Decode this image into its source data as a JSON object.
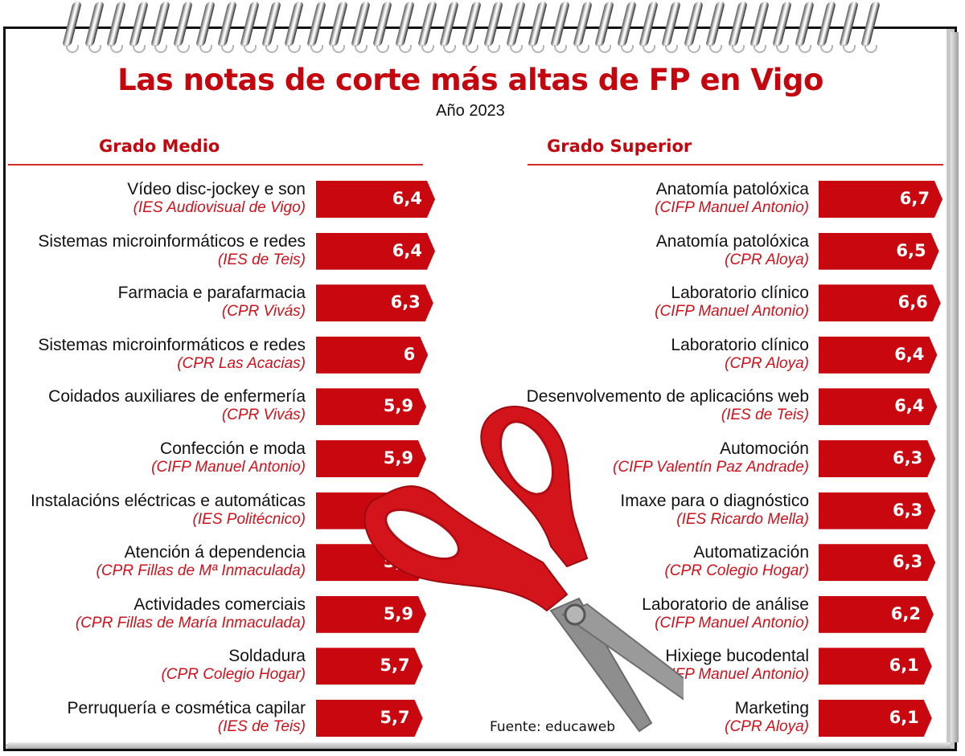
{
  "header": {
    "title": "Las notas de corte más altas de FP en Vigo",
    "subtitle": "Año 2023"
  },
  "sections": {
    "medio": {
      "title": "Grado Medio"
    },
    "superior": {
      "title": "Grado Superior"
    }
  },
  "colors": {
    "accent": "#c8070f",
    "school_text": "#d0111b",
    "label_text": "#111111"
  },
  "footer": {
    "source": "Fuente: educaweb"
  },
  "chart_data": [
    {
      "type": "bar",
      "orientation": "horizontal",
      "title": "Grado Medio",
      "categories": [
        "Vídeo disc-jockey e son (IES Audiovisual de Vigo)",
        "Sistemas microinformáticos e redes (IES de Teis)",
        "Farmacia e parafarmacia (CPR Vivás)",
        "Sistemas microinformáticos e redes (CPR Las Acacias)",
        "Coidados auxiliares de enfermería (CPR Vivás)",
        "Confección e moda (CIFP Manuel Antonio)",
        "Instalacións eléctricas e automáticas (IES Politécnico)",
        "Atención á dependencia (CPR Fillas de Mª Inmaculada)",
        "Actividades comerciais (CPR Fillas de María Inmaculada)",
        "Soldadura (CPR Colegio Hogar)",
        "Perruquería e cosmética capilar (IES de Teis)"
      ],
      "values": [
        6.4,
        6.4,
        6.3,
        6.0,
        5.9,
        5.9,
        5.8,
        5.9,
        5.9,
        5.7,
        5.7
      ],
      "labels": [
        "6,4",
        "6,4",
        "6,3",
        "6",
        "5,9",
        "5,9",
        "5,8",
        "5,9",
        "5,9",
        "5,7",
        "5,7"
      ]
    },
    {
      "type": "bar",
      "orientation": "horizontal",
      "title": "Grado Superior",
      "categories": [
        "Anatomía patolóxica (CIFP Manuel Antonio)",
        "Anatomía patolóxica (CPR Aloya)",
        "Laboratorio clínico (CIFP Manuel Antonio)",
        "Laboratorio clínico (CPR Aloya)",
        "Desenvolvemento de aplicacións web (IES de Teis)",
        "Automoción (CIFP Valentín Paz Andrade)",
        "Imaxe para o diagnóstico (IES Ricardo Mella)",
        "Automatización (CPR Colegio Hogar)",
        "Laboratorio de análise (CIFP Manuel Antonio)",
        "Hixiege bucodental (CIFP Manuel Antonio)",
        "Marketing (CPR Aloya)"
      ],
      "values": [
        6.7,
        6.5,
        6.6,
        6.4,
        6.4,
        6.3,
        6.3,
        6.3,
        6.2,
        6.1,
        6.1
      ],
      "labels": [
        "6,7",
        "6,5",
        "6,6",
        "6,4",
        "6,4",
        "6,3",
        "6,3",
        "6,3",
        "6,2",
        "6,1",
        "6,1"
      ]
    }
  ],
  "medio_rows": [
    {
      "label": "Vídeo disc-jockey e son",
      "school": "(IES Audiovisual de Vigo)",
      "value": "6,4"
    },
    {
      "label": "Sistemas microinformáticos e redes",
      "school": "(IES de Teis)",
      "value": "6,4"
    },
    {
      "label": "Farmacia e parafarmacia",
      "school": "(CPR Vivás)",
      "value": "6,3"
    },
    {
      "label": "Sistemas microinformáticos e redes",
      "school": "(CPR Las Acacias)",
      "value": "6"
    },
    {
      "label": "Coidados auxiliares de enfermería",
      "school": "(CPR Vivás)",
      "value": "5,9"
    },
    {
      "label": "Confección e moda",
      "school": "(CIFP Manuel Antonio)",
      "value": "5,9"
    },
    {
      "label": "Instalacións eléctricas e automáticas",
      "school": "(IES Politécnico)",
      "value": "5,8"
    },
    {
      "label": "Atención á dependencia",
      "school": "(CPR Fillas de Mª Inmaculada)",
      "value": "5,9"
    },
    {
      "label": "Actividades comerciais",
      "school": "(CPR Fillas de María Inmaculada)",
      "value": "5,9"
    },
    {
      "label": "Soldadura",
      "school": "(CPR Colegio Hogar)",
      "value": "5,7"
    },
    {
      "label": "Perruquería e cosmética capilar",
      "school": "(IES de Teis)",
      "value": "5,7"
    }
  ],
  "superior_rows": [
    {
      "label": "Anatomía patolóxica",
      "school": "(CIFP Manuel Antonio)",
      "value": "6,7"
    },
    {
      "label": "Anatomía patolóxica",
      "school": "(CPR Aloya)",
      "value": "6,5"
    },
    {
      "label": "Laboratorio clínico",
      "school": "(CIFP Manuel Antonio)",
      "value": "6,6"
    },
    {
      "label": "Laboratorio clínico",
      "school": "(CPR Aloya)",
      "value": "6,4"
    },
    {
      "label": "Desenvolvemento de aplicacións web",
      "school": "(IES de Teis)",
      "value": "6,4"
    },
    {
      "label": "Automoción",
      "school": "(CIFP Valentín Paz Andrade)",
      "value": "6,3"
    },
    {
      "label": "Imaxe para o diagnóstico",
      "school": "(IES Ricardo Mella)",
      "value": "6,3"
    },
    {
      "label": "Automatización",
      "school": "(CPR Colegio Hogar)",
      "value": "6,3"
    },
    {
      "label": "Laboratorio de análise",
      "school": "(CIFP Manuel Antonio)",
      "value": "6,2"
    },
    {
      "label": "Hixiege bucodental",
      "school": "(CIFP Manuel Antonio)",
      "value": "6,1"
    },
    {
      "label": "Marketing",
      "school": "(CPR Aloya)",
      "value": "6,1"
    }
  ]
}
